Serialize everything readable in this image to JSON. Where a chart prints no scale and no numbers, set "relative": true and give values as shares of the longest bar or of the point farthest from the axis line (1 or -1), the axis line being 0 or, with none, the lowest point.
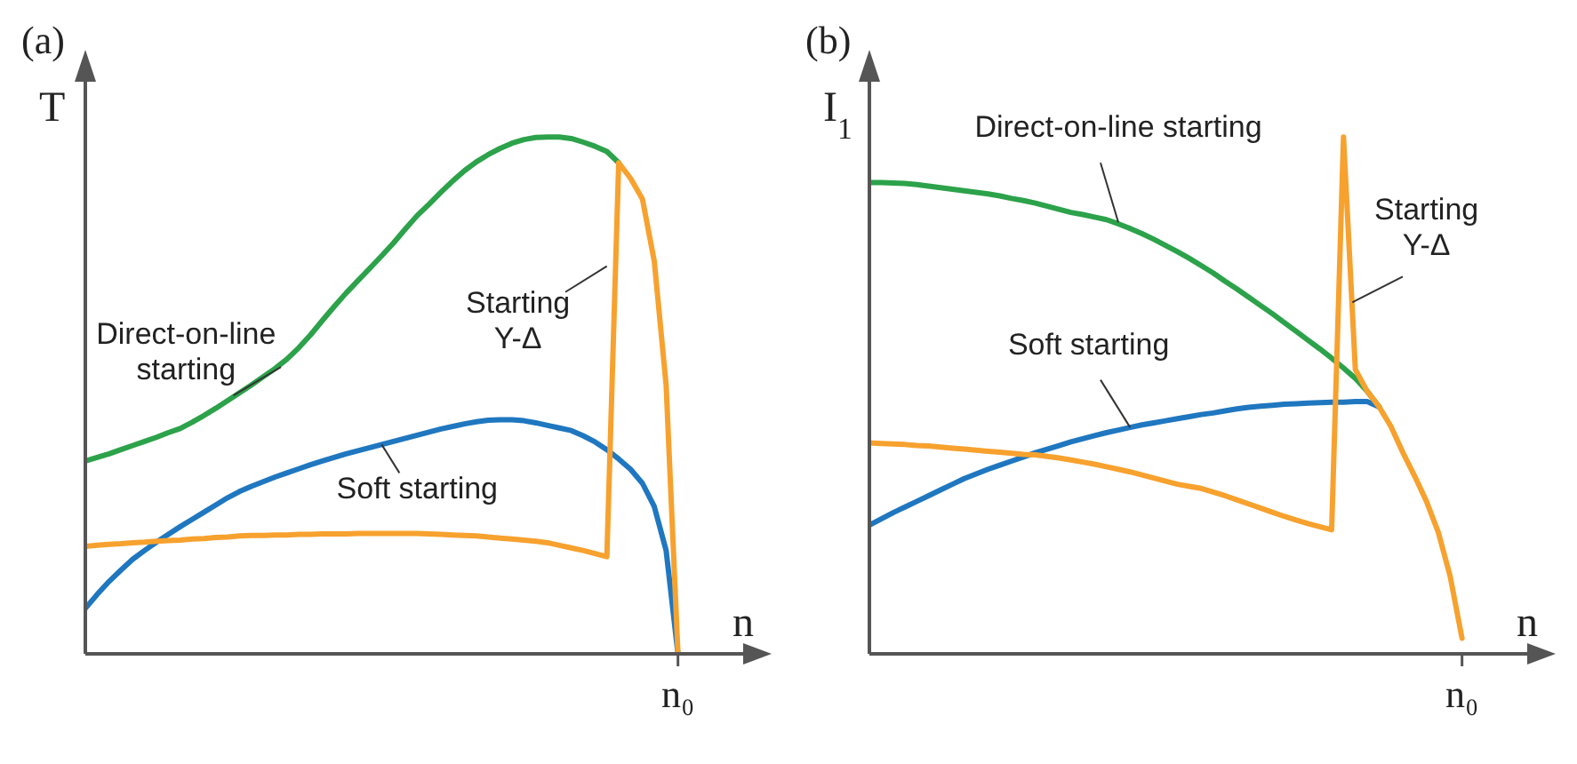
{
  "chart_data": [
    {
      "type": "line",
      "title": "(a)",
      "xlabel": "n",
      "ylabel": "T",
      "relative": true,
      "annotations": [
        "n₀"
      ],
      "categories": [
        null,
        null,
        null,
        null,
        null,
        null,
        null,
        null,
        null,
        null,
        null,
        null,
        null,
        null,
        null,
        null,
        null,
        null,
        null,
        null,
        null,
        null,
        null,
        null,
        null,
        null,
        null,
        null,
        null,
        null,
        null,
        null,
        null,
        null,
        null,
        null,
        null,
        null,
        null,
        null,
        null,
        null,
        null,
        null,
        null,
        null,
        null,
        null,
        null,
        null,
        null
      ],
      "series": [
        {
          "name": "Direct-on-line starting",
          "color": "#2ca24a",
          "values": [
            0.373,
            0.38,
            0.387,
            0.395,
            0.403,
            0.411,
            0.419,
            0.428,
            0.436,
            0.448,
            0.461,
            0.475,
            0.49,
            0.505,
            0.52,
            0.536,
            0.552,
            0.57,
            0.592,
            0.617,
            0.645,
            0.672,
            0.698,
            0.722,
            0.746,
            0.77,
            0.795,
            0.822,
            0.848,
            0.87,
            0.893,
            0.915,
            0.935,
            0.952,
            0.966,
            0.978,
            0.988,
            0.995,
            0.999,
            1.0,
            1.0,
            0.997,
            0.99,
            0.982,
            0.972,
            0.95,
            null,
            null,
            null,
            null,
            null
          ]
        },
        {
          "name": "Soft starting",
          "color": "#1f77c0",
          "values": [
            0.088,
            0.115,
            0.14,
            0.162,
            0.183,
            0.2,
            0.216,
            0.231,
            0.246,
            0.26,
            0.274,
            0.288,
            0.302,
            0.314,
            0.324,
            0.333,
            0.342,
            0.35,
            0.358,
            0.366,
            0.373,
            0.38,
            0.387,
            0.393,
            0.399,
            0.405,
            0.411,
            0.417,
            0.423,
            0.429,
            0.435,
            0.44,
            0.445,
            0.449,
            0.452,
            0.453,
            0.453,
            0.451,
            0.447,
            0.442,
            0.437,
            0.432,
            0.422,
            0.41,
            0.395,
            0.377,
            0.357,
            0.33,
            0.285,
            0.2,
            0
          ]
        },
        {
          "name": "Starting Y-Δ",
          "color": "#f7a12e",
          "values": [
            0.208,
            0.21,
            0.212,
            0.213,
            0.215,
            0.216,
            0.218,
            0.219,
            0.22,
            0.222,
            0.223,
            0.225,
            0.226,
            0.228,
            0.229,
            0.229,
            0.23,
            0.23,
            0.231,
            0.231,
            0.232,
            0.232,
            0.232,
            0.233,
            0.233,
            0.233,
            0.233,
            0.233,
            0.233,
            0.232,
            0.231,
            0.23,
            0.229,
            0.228,
            0.226,
            0.224,
            0.222,
            0.22,
            0.218,
            0.215,
            0.21,
            0.205,
            0.2,
            0.194,
            0.188,
            0.95,
            0.92,
            0.88,
            0.76,
            0.52,
            0
          ]
        }
      ]
    },
    {
      "type": "line",
      "title": "(b)",
      "xlabel": "n",
      "ylabel": "I$_{1}$",
      "relative": true,
      "annotations": [
        "n₀"
      ],
      "categories": [
        null,
        null,
        null,
        null,
        null,
        null,
        null,
        null,
        null,
        null,
        null,
        null,
        null,
        null,
        null,
        null,
        null,
        null,
        null,
        null,
        null,
        null,
        null,
        null,
        null,
        null,
        null,
        null,
        null,
        null,
        null,
        null,
        null,
        null,
        null,
        null,
        null,
        null,
        null,
        null,
        null,
        null,
        null,
        null,
        null,
        null,
        null,
        null,
        null,
        null,
        null
      ],
      "series": [
        {
          "name": "Direct-on-line starting",
          "color": "#2ca24a",
          "values": [
            0.912,
            0.912,
            0.911,
            0.91,
            0.908,
            0.905,
            0.902,
            0.899,
            0.896,
            0.893,
            0.89,
            0.886,
            0.881,
            0.877,
            0.872,
            0.866,
            0.86,
            0.854,
            0.85,
            0.845,
            0.84,
            0.832,
            0.823,
            0.813,
            0.802,
            0.79,
            0.778,
            0.765,
            0.751,
            0.737,
            0.721,
            0.706,
            0.69,
            0.674,
            0.658,
            0.641,
            0.624,
            0.607,
            0.59,
            0.572,
            0.553,
            0.533,
            0.508,
            0.478,
            null,
            null,
            null,
            null,
            null,
            null,
            null
          ]
        },
        {
          "name": "Soft starting",
          "color": "#1f77c0",
          "values": [
            0.249,
            0.261,
            0.273,
            0.284,
            0.295,
            0.306,
            0.317,
            0.328,
            0.339,
            0.348,
            0.357,
            0.365,
            0.373,
            0.381,
            0.389,
            0.396,
            0.403,
            0.41,
            0.416,
            0.422,
            0.428,
            0.433,
            0.438,
            0.443,
            0.447,
            0.451,
            0.455,
            0.459,
            0.463,
            0.466,
            0.47,
            0.474,
            0.477,
            0.479,
            0.481,
            0.483,
            0.484,
            0.485,
            0.486,
            0.487,
            0.487,
            0.488,
            0.488,
            0.478,
            null,
            null,
            null,
            null,
            null,
            null,
            null
          ]
        },
        {
          "name": "Starting Y-Δ",
          "color": "#f7a12e",
          "values": [
            0.408,
            0.407,
            0.406,
            0.405,
            0.403,
            0.402,
            0.4,
            0.398,
            0.396,
            0.394,
            0.392,
            0.39,
            0.388,
            0.386,
            0.385,
            0.382,
            0.379,
            0.375,
            0.371,
            0.367,
            0.362,
            0.357,
            0.352,
            0.346,
            0.34,
            0.334,
            0.328,
            0.324,
            0.32,
            0.313,
            0.306,
            0.298,
            0.29,
            0.282,
            0.274,
            0.266,
            0.259,
            0.252,
            0.246,
            0.24,
            1.0,
            0.55,
            0.508,
            0.478,
            0.44,
            0.39,
            0.344,
            0.295,
            0.235,
            0.15,
            0.03
          ]
        }
      ]
    }
  ]
}
